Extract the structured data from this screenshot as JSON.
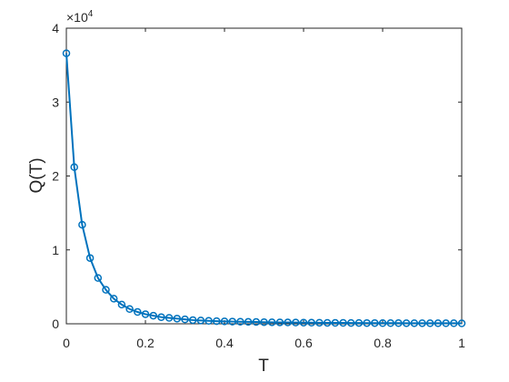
{
  "chart_data": {
    "type": "line",
    "xlabel": "T",
    "ylabel": "Q(T)",
    "y_multiplier": {
      "base": "×10",
      "exponent": "4"
    },
    "x": [
      0,
      0.02,
      0.04,
      0.06,
      0.08,
      0.1,
      0.12,
      0.14,
      0.16,
      0.18,
      0.2,
      0.22,
      0.24,
      0.26,
      0.28,
      0.3,
      0.32,
      0.34,
      0.36,
      0.38,
      0.4,
      0.42,
      0.44,
      0.46,
      0.48,
      0.5,
      0.52,
      0.54,
      0.56,
      0.58,
      0.6,
      0.62,
      0.64,
      0.66,
      0.68,
      0.7,
      0.72,
      0.74,
      0.76,
      0.78,
      0.8,
      0.82,
      0.84,
      0.86,
      0.88,
      0.9,
      0.92,
      0.94,
      0.96,
      0.98,
      1
    ],
    "series": [
      {
        "color": "#0072bd",
        "values": [
          3.66,
          2.12,
          1.34,
          0.89,
          0.62,
          0.46,
          0.34,
          0.26,
          0.2,
          0.16,
          0.13,
          0.11,
          0.09,
          0.08,
          0.07,
          0.06,
          0.05,
          0.045,
          0.04,
          0.036,
          0.033,
          0.03,
          0.028,
          0.026,
          0.024,
          0.022,
          0.02,
          0.019,
          0.018,
          0.017,
          0.016,
          0.015,
          0.014,
          0.013,
          0.012,
          0.012,
          0.011,
          0.011,
          0.01,
          0.01,
          0.009,
          0.009,
          0.009,
          0.008,
          0.008,
          0.008,
          0.007,
          0.007,
          0.007,
          0.007,
          0.006
        ]
      }
    ],
    "xlim": [
      0,
      1
    ],
    "ylim": [
      0,
      4
    ],
    "xticks": [
      0,
      0.2,
      0.4,
      0.6,
      0.8,
      1
    ],
    "yticks": [
      0,
      1,
      2,
      3,
      4
    ]
  }
}
